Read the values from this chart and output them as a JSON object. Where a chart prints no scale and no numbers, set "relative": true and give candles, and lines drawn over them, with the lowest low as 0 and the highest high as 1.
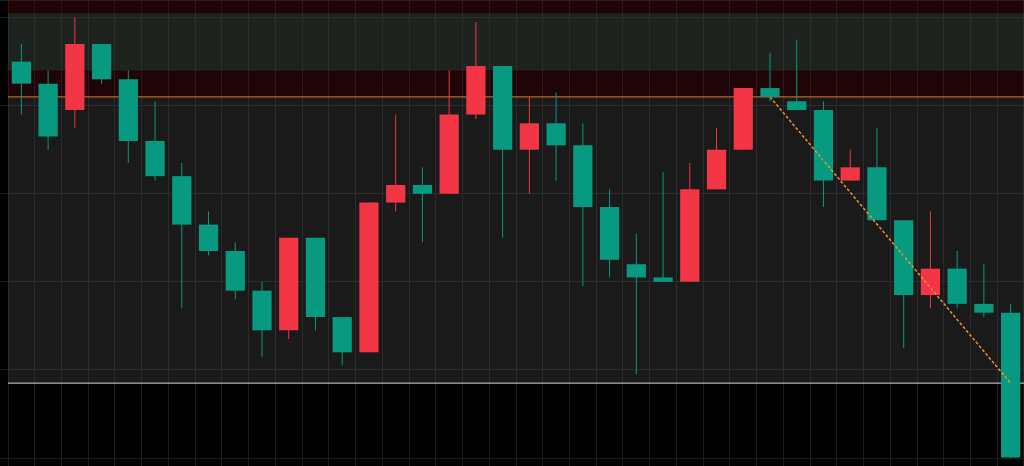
{
  "chart_data": {
    "type": "candlestick",
    "relative": true,
    "grid": true,
    "categories": [
      null,
      null,
      null,
      null,
      null,
      null,
      null,
      null,
      null,
      null,
      null,
      null,
      null,
      null,
      null,
      null,
      null,
      null,
      null,
      null,
      null,
      null,
      null,
      null,
      null,
      null,
      null,
      null,
      null,
      null,
      null,
      null,
      null,
      null,
      null,
      null,
      null,
      null
    ],
    "ohlc": [
      [
        0.9,
        0.94,
        0.78,
        0.85
      ],
      [
        0.85,
        0.88,
        0.7,
        0.73
      ],
      [
        0.79,
        1.0,
        0.75,
        0.94
      ],
      [
        0.94,
        0.94,
        0.85,
        0.86
      ],
      [
        0.86,
        0.88,
        0.67,
        0.72
      ],
      [
        0.72,
        0.81,
        0.63,
        0.64
      ],
      [
        0.64,
        0.67,
        0.34,
        0.53
      ],
      [
        0.53,
        0.56,
        0.46,
        0.47
      ],
      [
        0.47,
        0.49,
        0.36,
        0.38
      ],
      [
        0.38,
        0.4,
        0.23,
        0.29
      ],
      [
        0.29,
        0.5,
        0.27,
        0.5
      ],
      [
        0.5,
        0.5,
        0.29,
        0.32
      ],
      [
        0.32,
        0.32,
        0.21,
        0.24
      ],
      [
        0.24,
        0.58,
        0.24,
        0.58
      ],
      [
        0.58,
        0.78,
        0.56,
        0.62
      ],
      [
        0.62,
        0.66,
        0.49,
        0.6
      ],
      [
        0.6,
        0.88,
        0.6,
        0.78
      ],
      [
        0.78,
        0.99,
        0.77,
        0.89
      ],
      [
        0.89,
        0.89,
        0.5,
        0.7
      ],
      [
        0.7,
        0.82,
        0.6,
        0.76
      ],
      [
        0.76,
        0.83,
        0.63,
        0.71
      ],
      [
        0.71,
        0.76,
        0.39,
        0.57
      ],
      [
        0.57,
        0.61,
        0.41,
        0.45
      ],
      [
        0.44,
        0.51,
        0.19,
        0.41
      ],
      [
        0.41,
        0.65,
        0.4,
        0.4
      ],
      [
        0.4,
        0.67,
        0.4,
        0.61
      ],
      [
        0.61,
        0.75,
        0.61,
        0.7
      ],
      [
        0.7,
        0.84,
        0.7,
        0.84
      ],
      [
        0.84,
        0.92,
        0.81,
        0.82
      ],
      [
        0.81,
        0.95,
        0.79,
        0.79
      ],
      [
        0.79,
        0.81,
        0.57,
        0.63
      ],
      [
        0.63,
        0.7,
        0.63,
        0.66
      ],
      [
        0.66,
        0.75,
        0.54,
        0.54
      ],
      [
        0.54,
        0.54,
        0.25,
        0.37
      ],
      [
        0.37,
        0.56,
        0.34,
        0.43
      ],
      [
        0.43,
        0.47,
        0.34,
        0.35
      ],
      [
        0.35,
        0.44,
        0.32,
        0.33
      ],
      [
        0.33,
        0.35,
        0,
        0
      ]
    ],
    "colors": [
      "#089981",
      "#089981",
      "#f23645",
      "#089981",
      "#089981",
      "#089981",
      "#089981",
      "#089981",
      "#089981",
      "#089981",
      "#f23645",
      "#089981",
      "#089981",
      "#f23645",
      "#f23645",
      "#089981",
      "#f23645",
      "#f23645",
      "#089981",
      "#f23645",
      "#089981",
      "#089981",
      "#089981",
      "#089981",
      "#089981",
      "#f23645",
      "#f23645",
      "#f23645",
      "#089981",
      "#089981",
      "#089981",
      "#f23645",
      "#089981",
      "#089981",
      "#f23645",
      "#089981",
      "#089981",
      "#089981"
    ],
    "series": [
      {
        "type": "line",
        "color": "#f0922e",
        "line_style": "dashed",
        "values": [
          null,
          null,
          null,
          null,
          null,
          null,
          null,
          null,
          null,
          null,
          null,
          null,
          null,
          null,
          null,
          null,
          null,
          null,
          null,
          null,
          null,
          null,
          null,
          null,
          null,
          null,
          null,
          null,
          0.82,
          null,
          null,
          null,
          null,
          null,
          null,
          null,
          null,
          0.17
        ]
      }
    ],
    "bands": [
      {
        "axis": "y",
        "from": 0.82,
        "to": 1.04,
        "color": "#5a0f14"
      },
      {
        "axis": "y",
        "from": 0.17,
        "to": 0.82,
        "color": "#4a4a4a"
      },
      {
        "axis": "y",
        "from": 0.88,
        "to": 1.01,
        "color": "#1e5c4c"
      }
    ],
    "ref_lines": [
      {
        "axis": "y",
        "value": 0.82,
        "color": "#e07b2a"
      },
      {
        "axis": "y",
        "value": 0.17,
        "color": "#d9d9d9"
      }
    ]
  }
}
